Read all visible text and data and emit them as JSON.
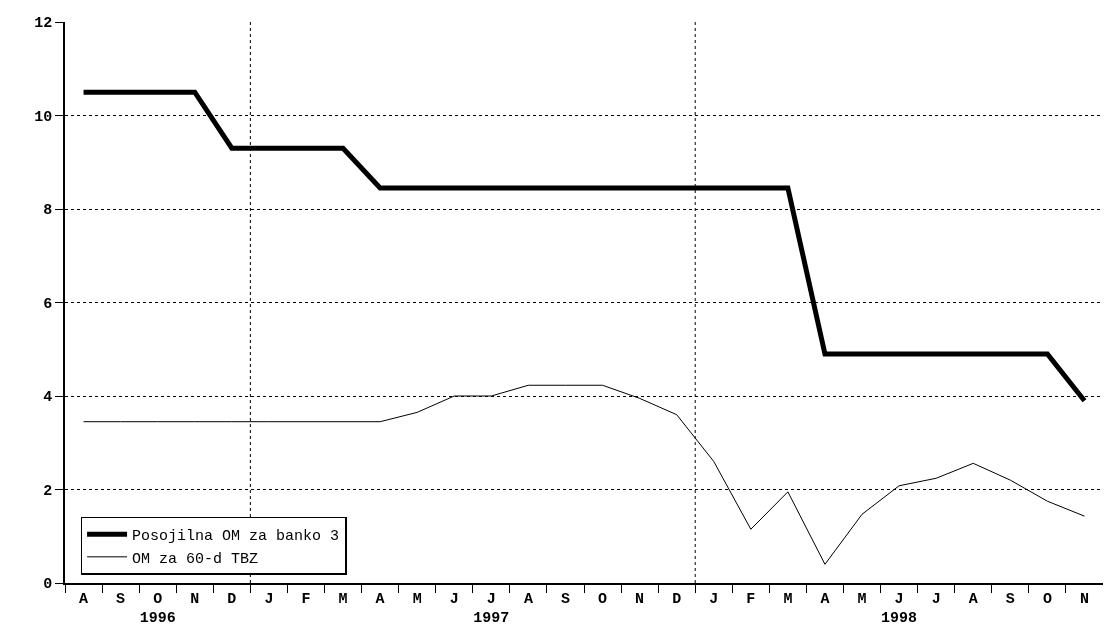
{
  "chart_data": {
    "type": "line",
    "categories": [
      "A",
      "S",
      "O\n1996",
      "N",
      "D",
      "J",
      "F",
      "M",
      "A",
      "M",
      "J",
      "J\n1997",
      "A",
      "S",
      "O",
      "N",
      "D",
      "J",
      "F",
      "M",
      "A",
      "M",
      "J\n1998",
      "J",
      "A",
      "S",
      "O",
      "N"
    ],
    "series": [
      {
        "name": "Posojilna OM za banko 3",
        "color": "#000000",
        "values": [
          10.5,
          10.5,
          10.5,
          10.5,
          9.3,
          9.3,
          9.3,
          9.3,
          8.45,
          8.45,
          8.45,
          8.45,
          8.45,
          8.45,
          8.45,
          8.45,
          8.45,
          8.45,
          8.45,
          8.45,
          4.9,
          4.9,
          4.9,
          4.9,
          4.9,
          4.9,
          4.9,
          3.9
        ]
      },
      {
        "name": "OM za 60-d TBZ",
        "color": "#000000",
        "values": [
          3.45,
          3.45,
          3.45,
          3.45,
          3.45,
          3.45,
          3.45,
          3.45,
          3.45,
          3.65,
          4.0,
          4.0,
          4.23,
          4.23,
          4.23,
          3.95,
          3.6,
          2.6,
          1.15,
          1.95,
          0.4,
          1.47,
          2.08,
          2.24,
          2.56,
          2.2,
          1.75,
          1.43
        ]
      }
    ],
    "ylim": [
      0,
      12
    ],
    "yticks": [
      0,
      2,
      4,
      6,
      8,
      10,
      12
    ],
    "grid": "y",
    "legend": "bottom left",
    "marker": "none",
    "line_style": "solid"
  }
}
